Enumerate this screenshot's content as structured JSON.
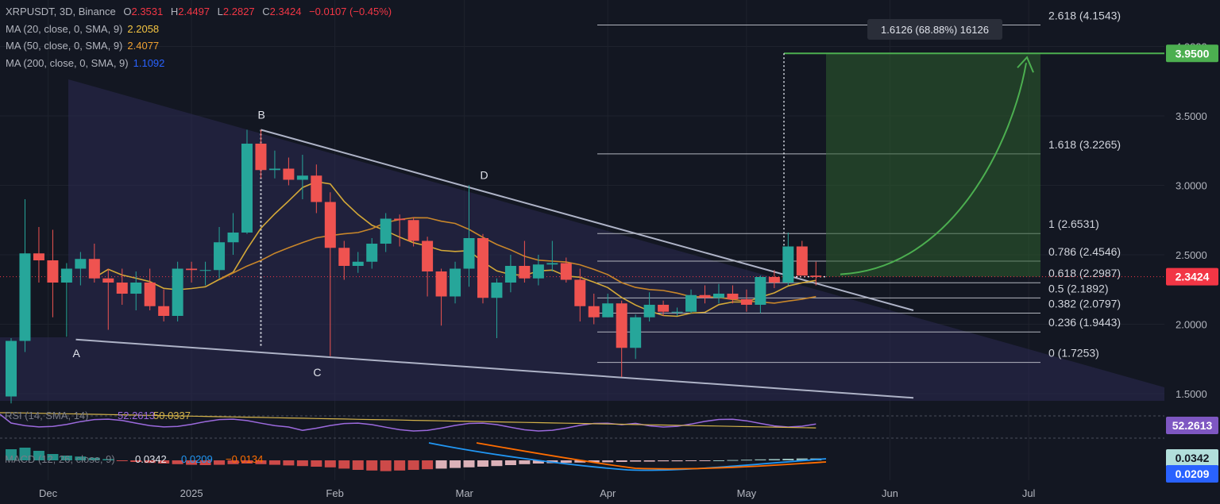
{
  "header": {
    "symbol": "XRPUSDT, 3D, Binance",
    "o_label": "O",
    "o": "2.3531",
    "h_label": "H",
    "h": "2.4497",
    "l_label": "L",
    "l": "2.2827",
    "c_label": "C",
    "c": "2.3424",
    "change": "−0.0107 (−0.45%)"
  },
  "indicators": [
    {
      "label": "MA (20, close, 0, SMA, 9)",
      "value": "2.2058",
      "color": "#f5c542"
    },
    {
      "label": "MA (50, close, 0, SMA, 9)",
      "value": "2.4077",
      "color": "#f0a030"
    },
    {
      "label": "MA (200, close, 0, SMA, 9)",
      "value": "1.1092",
      "color": "#2962ff"
    }
  ],
  "colors": {
    "up": "#26a69a",
    "down": "#ef5350",
    "up_bright": "#3ddc84",
    "down_bright": "#f23645",
    "ma20": "#d4a938",
    "ma50": "#c8862a",
    "target": "#4caf50",
    "price": "#f23645",
    "wedge": "#2b2a52",
    "rsi": "#9c6ade",
    "macd": "#2196f3",
    "signal": "#ff6d00"
  },
  "chart_data": {
    "type": "candlestick",
    "symbol": "XRPUSDT",
    "timeframe": "3D",
    "exchange": "Binance",
    "ylim": [
      1.45,
      4.2
    ],
    "y_ticks": [
      "1.5000",
      "2.0000",
      "2.5000",
      "3.0000",
      "3.5000",
      "4.0000"
    ],
    "x_ticks": [
      "Dec",
      "2025",
      "Feb",
      "Mar",
      "Apr",
      "May",
      "Jun",
      "Jul"
    ],
    "current_price": "2.3424",
    "target_price": "3.9500",
    "measure_label": "1.6126 (68.88%) 16126",
    "fib_levels": [
      {
        "ratio": "0",
        "label": "0 (1.7253)",
        "value": 1.7253
      },
      {
        "ratio": "0.236",
        "label": "0.236 (1.9443)",
        "value": 1.9443
      },
      {
        "ratio": "0.382",
        "label": "0.382 (2.0797)",
        "value": 2.0797
      },
      {
        "ratio": "0.5",
        "label": "0.5 (2.1892)",
        "value": 2.1892
      },
      {
        "ratio": "0.618",
        "label": "0.618 (2.2987)",
        "value": 2.2987
      },
      {
        "ratio": "0.786",
        "label": "0.786 (2.4546)",
        "value": 2.4546
      },
      {
        "ratio": "1",
        "label": "1 (2.6531)",
        "value": 2.6531
      },
      {
        "ratio": "1.618",
        "label": "1.618 (3.2265)",
        "value": 3.2265
      },
      {
        "ratio": "2.618",
        "label": "2.618 (4.1543)",
        "value": 4.1543
      }
    ],
    "points": [
      {
        "label": "A",
        "date": "2024-12-07",
        "price": 1.89
      },
      {
        "label": "B",
        "date": "2025-01-16",
        "price": 3.4
      },
      {
        "label": "C",
        "date": "2025-01-28",
        "price": 1.77
      },
      {
        "label": "D",
        "date": "2025-03-02",
        "price": 3.0
      }
    ],
    "candles": [
      {
        "date": "2024-11-23",
        "o": 1.48,
        "h": 1.9,
        "l": 1.43,
        "c": 1.88
      },
      {
        "date": "2024-11-26",
        "o": 1.88,
        "h": 2.9,
        "l": 1.8,
        "c": 2.51
      },
      {
        "date": "2024-11-29",
        "o": 2.51,
        "h": 2.7,
        "l": 2.3,
        "c": 2.46
      },
      {
        "date": "2024-12-02",
        "o": 2.46,
        "h": 2.68,
        "l": 2.05,
        "c": 2.3
      },
      {
        "date": "2024-12-05",
        "o": 2.3,
        "h": 2.44,
        "l": 1.91,
        "c": 2.4
      },
      {
        "date": "2024-12-08",
        "o": 2.4,
        "h": 2.52,
        "l": 2.28,
        "c": 2.47
      },
      {
        "date": "2024-12-11",
        "o": 2.47,
        "h": 2.58,
        "l": 2.3,
        "c": 2.33
      },
      {
        "date": "2024-12-14",
        "o": 2.33,
        "h": 2.4,
        "l": 1.96,
        "c": 2.3
      },
      {
        "date": "2024-12-17",
        "o": 2.3,
        "h": 2.4,
        "l": 2.14,
        "c": 2.22
      },
      {
        "date": "2024-12-20",
        "o": 2.22,
        "h": 2.38,
        "l": 2.1,
        "c": 2.3
      },
      {
        "date": "2024-12-23",
        "o": 2.3,
        "h": 2.4,
        "l": 2.1,
        "c": 2.13
      },
      {
        "date": "2024-12-26",
        "o": 2.13,
        "h": 2.25,
        "l": 2.02,
        "c": 2.06
      },
      {
        "date": "2024-12-29",
        "o": 2.06,
        "h": 2.45,
        "l": 2.02,
        "c": 2.4
      },
      {
        "date": "2025-01-01",
        "o": 2.4,
        "h": 2.45,
        "l": 2.3,
        "c": 2.39
      },
      {
        "date": "2025-01-04",
        "o": 2.39,
        "h": 2.45,
        "l": 2.28,
        "c": 2.39
      },
      {
        "date": "2025-01-07",
        "o": 2.39,
        "h": 2.7,
        "l": 2.33,
        "c": 2.59
      },
      {
        "date": "2025-01-10",
        "o": 2.59,
        "h": 2.8,
        "l": 2.5,
        "c": 2.66
      },
      {
        "date": "2025-01-13",
        "o": 2.66,
        "h": 3.4,
        "l": 2.65,
        "c": 3.3
      },
      {
        "date": "2025-01-16",
        "o": 3.3,
        "h": 3.4,
        "l": 3.05,
        "c": 3.11
      },
      {
        "date": "2025-01-19",
        "o": 3.11,
        "h": 3.25,
        "l": 3.05,
        "c": 3.12
      },
      {
        "date": "2025-01-22",
        "o": 3.12,
        "h": 3.2,
        "l": 3.0,
        "c": 3.04
      },
      {
        "date": "2025-01-25",
        "o": 3.04,
        "h": 3.22,
        "l": 2.9,
        "c": 3.07
      },
      {
        "date": "2025-01-28",
        "o": 3.07,
        "h": 3.15,
        "l": 2.8,
        "c": 2.88
      },
      {
        "date": "2025-01-31",
        "o": 2.88,
        "h": 2.95,
        "l": 1.77,
        "c": 2.55
      },
      {
        "date": "2025-02-03",
        "o": 2.55,
        "h": 2.6,
        "l": 2.32,
        "c": 2.42
      },
      {
        "date": "2025-02-06",
        "o": 2.42,
        "h": 2.52,
        "l": 2.37,
        "c": 2.45
      },
      {
        "date": "2025-02-09",
        "o": 2.45,
        "h": 2.62,
        "l": 2.4,
        "c": 2.58
      },
      {
        "date": "2025-02-12",
        "o": 2.58,
        "h": 2.8,
        "l": 2.52,
        "c": 2.76
      },
      {
        "date": "2025-02-15",
        "o": 2.76,
        "h": 2.79,
        "l": 2.56,
        "c": 2.75
      },
      {
        "date": "2025-02-18",
        "o": 2.75,
        "h": 2.77,
        "l": 2.56,
        "c": 2.6
      },
      {
        "date": "2025-02-21",
        "o": 2.6,
        "h": 2.63,
        "l": 2.2,
        "c": 2.38
      },
      {
        "date": "2025-02-24",
        "o": 2.38,
        "h": 2.4,
        "l": 1.99,
        "c": 2.2
      },
      {
        "date": "2025-02-27",
        "o": 2.2,
        "h": 2.45,
        "l": 2.15,
        "c": 2.4
      },
      {
        "date": "2025-03-02",
        "o": 2.4,
        "h": 3.0,
        "l": 2.27,
        "c": 2.62
      },
      {
        "date": "2025-03-05",
        "o": 2.62,
        "h": 2.65,
        "l": 2.15,
        "c": 2.19
      },
      {
        "date": "2025-03-08",
        "o": 2.19,
        "h": 2.33,
        "l": 1.9,
        "c": 2.3
      },
      {
        "date": "2025-03-11",
        "o": 2.3,
        "h": 2.5,
        "l": 2.23,
        "c": 2.42
      },
      {
        "date": "2025-03-14",
        "o": 2.42,
        "h": 2.6,
        "l": 2.3,
        "c": 2.33
      },
      {
        "date": "2025-03-17",
        "o": 2.33,
        "h": 2.5,
        "l": 2.28,
        "c": 2.43
      },
      {
        "date": "2025-03-20",
        "o": 2.43,
        "h": 2.6,
        "l": 2.38,
        "c": 2.44
      },
      {
        "date": "2025-03-23",
        "o": 2.44,
        "h": 2.48,
        "l": 2.3,
        "c": 2.32
      },
      {
        "date": "2025-03-26",
        "o": 2.32,
        "h": 2.4,
        "l": 2.02,
        "c": 2.13
      },
      {
        "date": "2025-03-29",
        "o": 2.13,
        "h": 2.22,
        "l": 2.0,
        "c": 2.05
      },
      {
        "date": "2025-04-01",
        "o": 2.05,
        "h": 2.22,
        "l": 2.05,
        "c": 2.15
      },
      {
        "date": "2025-04-04",
        "o": 2.15,
        "h": 2.17,
        "l": 1.62,
        "c": 1.83
      },
      {
        "date": "2025-04-07",
        "o": 1.83,
        "h": 2.07,
        "l": 1.75,
        "c": 2.05
      },
      {
        "date": "2025-04-10",
        "o": 2.05,
        "h": 2.23,
        "l": 2.02,
        "c": 2.14
      },
      {
        "date": "2025-04-13",
        "o": 2.14,
        "h": 2.17,
        "l": 2.06,
        "c": 2.09
      },
      {
        "date": "2025-04-16",
        "o": 2.09,
        "h": 2.12,
        "l": 2.06,
        "c": 2.09
      },
      {
        "date": "2025-04-19",
        "o": 2.09,
        "h": 2.25,
        "l": 2.08,
        "c": 2.21
      },
      {
        "date": "2025-04-22",
        "o": 2.21,
        "h": 2.28,
        "l": 2.15,
        "c": 2.19
      },
      {
        "date": "2025-04-25",
        "o": 2.19,
        "h": 2.29,
        "l": 2.15,
        "c": 2.22
      },
      {
        "date": "2025-04-28",
        "o": 2.22,
        "h": 2.28,
        "l": 2.15,
        "c": 2.18
      },
      {
        "date": "2025-05-01",
        "o": 2.18,
        "h": 2.25,
        "l": 2.09,
        "c": 2.14
      },
      {
        "date": "2025-05-04",
        "o": 2.14,
        "h": 2.35,
        "l": 2.08,
        "c": 2.34
      },
      {
        "date": "2025-05-07",
        "o": 2.34,
        "h": 2.39,
        "l": 2.26,
        "c": 2.3
      },
      {
        "date": "2025-05-10",
        "o": 2.3,
        "h": 2.66,
        "l": 2.28,
        "c": 2.56
      },
      {
        "date": "2025-05-13",
        "o": 2.56,
        "h": 2.6,
        "l": 2.36,
        "c": 2.35
      },
      {
        "date": "2025-05-16",
        "o": 2.35,
        "h": 2.45,
        "l": 2.28,
        "c": 2.34
      }
    ],
    "rsi": {
      "label": "RSI (14, SMA, 14)",
      "value": "52.2613",
      "signal": "50.0337"
    },
    "macd": {
      "label": "MACD (12, 26, close, 9)",
      "hist": "0.0342",
      "macd": "0.0209",
      "signal": "−0.0134"
    }
  }
}
